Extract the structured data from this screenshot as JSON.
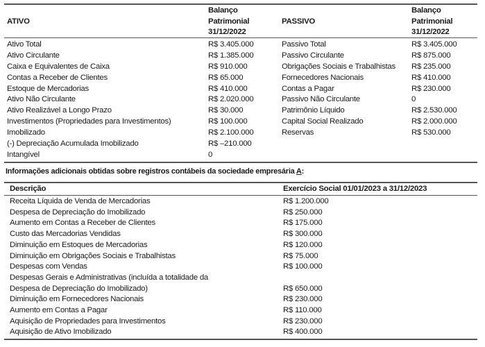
{
  "balance": {
    "headers": {
      "ativo": "ATIVO",
      "ativo_value": [
        "Balanço",
        "Patrimonial",
        "31/12/2022"
      ],
      "passivo": "PASSIVO",
      "passivo_value": [
        "Balanço",
        "Patrimonial",
        "31/12/2022"
      ]
    },
    "rows": [
      {
        "a": "Ativo Total",
        "av": "R$ 3.405.000",
        "p": "Passivo Total",
        "pv": "R$ 3.405.000"
      },
      {
        "a": "Ativo Circulante",
        "av": "R$ 1.385.000",
        "p": "Passivo Circulante",
        "pv": "R$ 875.000"
      },
      {
        "a": "Caixa e Equivalentes de Caixa",
        "av": "R$ 910.000",
        "p": "Obrigações Sociais e Trabalhistas",
        "pv": "R$ 235.000"
      },
      {
        "a": "Contas a Receber de Clientes",
        "av": "R$ 65.000",
        "p": "Fornecedores Nacionais",
        "pv": "R$ 410.000"
      },
      {
        "a": "Estoque de Mercadorias",
        "av": "R$ 410.000",
        "p": "Contas a Pagar",
        "pv": "R$ 230.000"
      },
      {
        "a": "Ativo Não Circulante",
        "av": "R$ 2.020.000",
        "p": "Passivo Não Circulante",
        "pv": "0"
      },
      {
        "a": "Ativo Realizável a Longo Prazo",
        "av": "R$ 30.000",
        "p": "Patrimônio Líquido",
        "pv": "R$ 2.530.000"
      },
      {
        "a": "Investimentos (Propriedades para Investimentos)",
        "av": "R$ 100.000",
        "p": "Capital Social Realizado",
        "pv": "R$ 2.000.000"
      },
      {
        "a": "Imobilizado",
        "av": "R$ 2.100.000",
        "p": "Reservas",
        "pv": "R$ 530.000"
      },
      {
        "a": "(-) Depreciação Acumulada Imobilizado",
        "av": "R$ –210.000",
        "p": "",
        "pv": ""
      },
      {
        "a": "Intangível",
        "av": "0",
        "p": "",
        "pv": ""
      }
    ]
  },
  "caption": {
    "text": "Informações adicionais obtidas sobre registros contábeis da sociedade empresária ",
    "underlined": "A",
    "suffix": ":"
  },
  "info": {
    "headers": {
      "desc": "Descrição",
      "value": "Exercício Social 01/01/2023 a 31/12/2023"
    },
    "rows": [
      {
        "d": "Receita Líquida de Venda de Mercadorias",
        "v": "R$ 1.200.000"
      },
      {
        "d": "Despesa de Depreciação do Imobilizado",
        "v": "R$ 250.000"
      },
      {
        "d": "Aumento em Contas a Receber de Clientes",
        "v": "R$ 175.000"
      },
      {
        "d": "Custo das Mercadorias Vendidas",
        "v": "R$ 300.000"
      },
      {
        "d": "Diminuição em Estoques de Mercadorias",
        "v": "R$ 120.000"
      },
      {
        "d": "Diminuição em Obrigações Sociais e Trabalhistas",
        "v": "R$ 75.000"
      },
      {
        "d": "Despesas com Vendas",
        "v": "R$ 100.000"
      },
      {
        "d": "Despesas Gerais e Administrativas (incluída a totalidade da Despesa de Depreciação do Imobilizado)",
        "v": "R$ 650.000"
      },
      {
        "d": "Diminuição em Fornecedores Nacionais",
        "v": "R$ 230.000"
      },
      {
        "d": "Aumento em Contas a Pagar",
        "v": "R$ 110.000"
      },
      {
        "d": "Aquisição de Propriedades para Investimentos",
        "v": "R$ 230.000"
      },
      {
        "d": "Aquisição de Ativo Imobilizado",
        "v": "R$ 400.000"
      }
    ]
  }
}
